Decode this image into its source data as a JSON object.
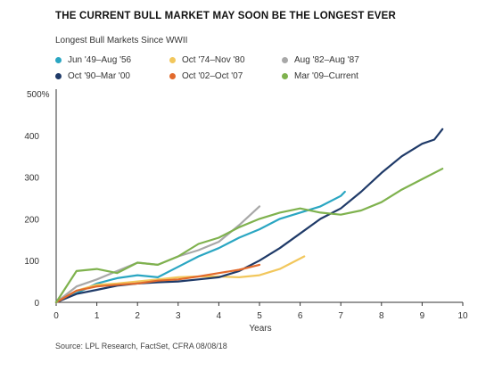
{
  "title": "THE CURRENT BULL MARKET MAY SOON BE THE LONGEST EVER",
  "subtitle": "Longest Bull Markets Since WWII",
  "source": "Source: LPL Research, FactSet, CFRA   08/08/18",
  "chart_data": {
    "type": "line",
    "xlabel": "Years",
    "ylabel": "",
    "xlim": [
      0,
      10
    ],
    "ylim": [
      0,
      500
    ],
    "x_ticks": [
      "0",
      "1",
      "2",
      "3",
      "4",
      "5",
      "6",
      "7",
      "8",
      "9",
      "10"
    ],
    "y_ticks": [
      "0",
      "100",
      "200",
      "300",
      "400",
      "500%"
    ],
    "grid": false,
    "legend_position": "top",
    "series": [
      {
        "name": "Jun '49–Aug '56",
        "color": "#2aa6c2",
        "x": [
          0,
          0.5,
          1,
          1.5,
          2,
          2.5,
          3,
          3.5,
          4,
          4.5,
          5,
          5.5,
          6,
          6.5,
          7,
          7.1
        ],
        "y": [
          0,
          22,
          45,
          58,
          65,
          60,
          85,
          110,
          130,
          155,
          175,
          200,
          215,
          230,
          255,
          265
        ]
      },
      {
        "name": "Oct '74–Nov '80",
        "color": "#f2c75c",
        "x": [
          0,
          0.5,
          1,
          1.5,
          2,
          2.5,
          3,
          3.5,
          4,
          4.5,
          5,
          5.5,
          6,
          6.1
        ],
        "y": [
          0,
          28,
          42,
          45,
          50,
          55,
          60,
          62,
          62,
          60,
          65,
          80,
          105,
          110
        ]
      },
      {
        "name": "Aug '82–Aug '87",
        "color": "#a8a8a8",
        "x": [
          0,
          0.5,
          1,
          1.5,
          2,
          2.5,
          3,
          3.5,
          4,
          4.5,
          5
        ],
        "y": [
          0,
          38,
          55,
          75,
          95,
          90,
          110,
          125,
          145,
          185,
          230
        ]
      },
      {
        "name": "Oct '90–Mar '00",
        "color": "#1f3a68",
        "x": [
          0,
          0.5,
          1,
          1.5,
          2,
          2.5,
          3,
          3.5,
          4,
          4.5,
          5,
          5.5,
          6,
          6.5,
          7,
          7.5,
          8,
          8.5,
          9,
          9.3,
          9.5
        ],
        "y": [
          0,
          20,
          30,
          40,
          45,
          48,
          50,
          55,
          60,
          75,
          100,
          130,
          165,
          200,
          225,
          265,
          310,
          350,
          380,
          390,
          415
        ]
      },
      {
        "name": "Oct '02–Oct '07",
        "color": "#e26a2c",
        "x": [
          0,
          0.5,
          1,
          1.5,
          2,
          2.5,
          3,
          3.5,
          4,
          4.5,
          5
        ],
        "y": [
          0,
          28,
          38,
          42,
          45,
          52,
          55,
          62,
          70,
          78,
          90
        ]
      },
      {
        "name": "Mar '09–Current",
        "color": "#7fb24e",
        "x": [
          0,
          0.5,
          1,
          1.5,
          2,
          2.5,
          3,
          3.5,
          4,
          4.5,
          5,
          5.5,
          6,
          6.5,
          7,
          7.5,
          8,
          8.5,
          9,
          9.5
        ],
        "y": [
          0,
          75,
          80,
          70,
          95,
          90,
          110,
          140,
          155,
          180,
          200,
          215,
          225,
          215,
          210,
          220,
          240,
          270,
          295,
          320
        ]
      }
    ]
  }
}
